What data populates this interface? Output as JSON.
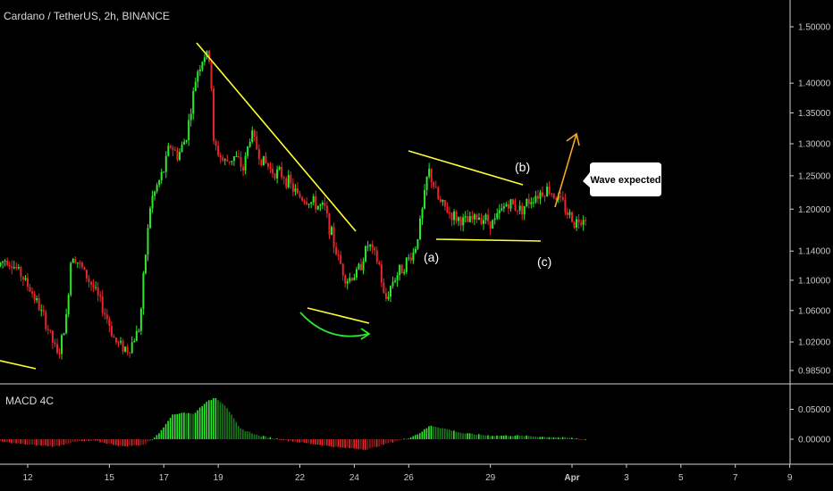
{
  "header": {
    "title": "Cardano / TetherUS, 2h, BINANCE"
  },
  "macd_label": "MACD 4C",
  "annotations": {
    "wave_a": "(a)",
    "wave_b": "(b)",
    "wave_c": "(c)",
    "callout": "Wave expected"
  },
  "colors": {
    "up": "#2ee82e",
    "down": "#e8262a",
    "trendline": "#ffff33",
    "arrow_orange": "#f5a623",
    "arrow_green": "#2ee82e",
    "divider": "#cfcfcf"
  },
  "chart_data": [
    {
      "type": "candlestick",
      "title": "Cardano / TetherUS, 2h, BINANCE",
      "y_scale": "log",
      "ylim": [
        0.96,
        1.52
      ],
      "y_ticks": [
        "1.50000",
        "1.40000",
        "1.35000",
        "1.30000",
        "1.25000",
        "1.20000",
        "1.14000",
        "1.10000",
        "1.06000",
        "1.02000",
        "0.98500"
      ],
      "x_ticks": [
        "12",
        "15",
        "17",
        "19",
        "22",
        "24",
        "26",
        "29",
        "Apr",
        "3",
        "5",
        "7",
        "9"
      ],
      "price_path": [
        [
          11.0,
          1.12
        ],
        [
          11.3,
          1.13
        ],
        [
          11.8,
          1.11
        ],
        [
          12.3,
          1.08
        ],
        [
          12.8,
          1.04
        ],
        [
          13.2,
          1.0
        ],
        [
          13.5,
          1.05
        ],
        [
          13.7,
          1.14
        ],
        [
          14.0,
          1.12
        ],
        [
          14.5,
          1.09
        ],
        [
          15.0,
          1.05
        ],
        [
          15.3,
          1.02
        ],
        [
          15.8,
          1.01
        ],
        [
          16.2,
          1.04
        ],
        [
          16.4,
          1.13
        ],
        [
          16.6,
          1.21
        ],
        [
          16.8,
          1.23
        ],
        [
          17.1,
          1.26
        ],
        [
          17.3,
          1.3
        ],
        [
          17.6,
          1.28
        ],
        [
          17.9,
          1.31
        ],
        [
          18.1,
          1.36
        ],
        [
          18.3,
          1.42
        ],
        [
          18.6,
          1.45
        ],
        [
          18.8,
          1.44
        ],
        [
          18.9,
          1.3
        ],
        [
          19.3,
          1.27
        ],
        [
          19.7,
          1.28
        ],
        [
          20.0,
          1.26
        ],
        [
          20.3,
          1.32
        ],
        [
          20.6,
          1.28
        ],
        [
          21.0,
          1.26
        ],
        [
          21.5,
          1.25
        ],
        [
          22.0,
          1.22
        ],
        [
          22.5,
          1.21
        ],
        [
          23.0,
          1.2
        ],
        [
          23.4,
          1.14
        ],
        [
          23.8,
          1.1
        ],
        [
          24.2,
          1.11
        ],
        [
          24.6,
          1.15
        ],
        [
          25.0,
          1.12
        ],
        [
          25.2,
          1.07
        ],
        [
          25.5,
          1.1
        ],
        [
          25.9,
          1.12
        ],
        [
          26.3,
          1.14
        ],
        [
          26.6,
          1.2
        ],
        [
          26.8,
          1.26
        ],
        [
          27.2,
          1.21
        ],
        [
          27.7,
          1.19
        ],
        [
          28.2,
          1.18
        ],
        [
          28.7,
          1.19
        ],
        [
          29.2,
          1.18
        ],
        [
          29.7,
          1.21
        ],
        [
          30.2,
          1.2
        ],
        [
          30.7,
          1.22
        ],
        [
          31.2,
          1.23
        ],
        [
          31.7,
          1.21
        ],
        [
          32.0,
          1.19
        ],
        [
          32.2,
          1.18
        ],
        [
          32.5,
          1.19
        ]
      ],
      "annotations": [
        "(a)",
        "(b)",
        "(c)",
        "Wave expected"
      ]
    },
    {
      "type": "bar",
      "title": "MACD 4C",
      "ylim": [
        -0.03,
        0.08
      ],
      "y_ticks": [
        "0.05000",
        "0.00000"
      ],
      "series": [
        {
          "name": "MACD 4C",
          "x": [
            11.0,
            12.0,
            13.0,
            13.8,
            14.5,
            15.5,
            16.3,
            16.8,
            17.3,
            17.7,
            18.1,
            18.5,
            18.9,
            19.3,
            19.8,
            20.5,
            21.5,
            22.5,
            23.5,
            24.5,
            25.3,
            26.0,
            26.4,
            26.8,
            27.3,
            28.0,
            29.0,
            30.0,
            31.0,
            32.0,
            32.4
          ],
          "values": [
            -0.004,
            -0.009,
            -0.012,
            -0.004,
            -0.003,
            -0.012,
            -0.009,
            0.008,
            0.04,
            0.045,
            0.042,
            0.06,
            0.07,
            0.055,
            0.018,
            0.006,
            -0.002,
            -0.008,
            -0.014,
            -0.017,
            -0.006,
            0.002,
            0.01,
            0.023,
            0.018,
            0.01,
            0.006,
            0.006,
            0.004,
            0.002,
            0.0
          ]
        }
      ]
    }
  ]
}
